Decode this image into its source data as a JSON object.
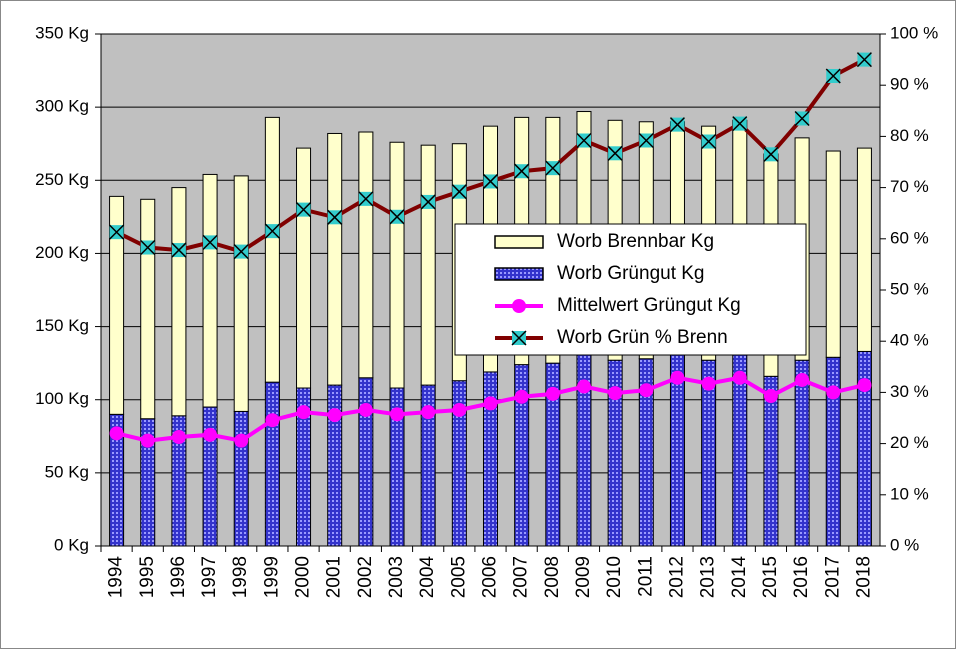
{
  "chart_data": {
    "type": "bar",
    "stacked": true,
    "categories": [
      "1994",
      "1995",
      "1996",
      "1997",
      "1998",
      "1999",
      "2000",
      "2001",
      "2002",
      "2003",
      "2004",
      "2005",
      "2006",
      "2007",
      "2008",
      "2009",
      "2010",
      "2011",
      "2012",
      "2013",
      "2014",
      "2015",
      "2016",
      "2017",
      "2018"
    ],
    "series": [
      {
        "name": "Worb Grüngut Kg",
        "type": "bar",
        "color": "#3333cc",
        "values": [
          90,
          87,
          89,
          95,
          92,
          112,
          108,
          110,
          115,
          108,
          110,
          113,
          119,
          124,
          125,
          131,
          127,
          128,
          131,
          127,
          131,
          116,
          127,
          129,
          133
        ]
      },
      {
        "name": "Worb Brennbar Kg",
        "type": "bar",
        "color": "#ffffcc",
        "values": [
          149,
          150,
          156,
          159,
          161,
          181,
          164,
          172,
          168,
          168,
          164,
          162,
          168,
          169,
          168,
          166,
          164,
          162,
          159,
          160,
          160,
          152,
          152,
          141,
          139
        ]
      },
      {
        "name": "Mittelwert Grüngut Kg",
        "type": "line",
        "color": "#ff00ff",
        "marker": "circle",
        "values": [
          77,
          72,
          74.5,
          76,
          72,
          86,
          91.5,
          89.5,
          93,
          90,
          91.5,
          93,
          97.5,
          102,
          104,
          109,
          104.5,
          106.5,
          115,
          111,
          115,
          102.5,
          113.5,
          105,
          110
        ]
      },
      {
        "name": "Worb Grün % Brenn",
        "type": "line",
        "color": "#800000",
        "marker": "x-square",
        "marker_color": "#33cccc",
        "axis": "y2",
        "values": [
          61.3,
          58.3,
          57.8,
          59.3,
          57.5,
          61.5,
          65.7,
          64.2,
          67.8,
          64.3,
          67.2,
          69.2,
          71.2,
          73.2,
          73.8,
          79.2,
          76.7,
          79.2,
          82.3,
          79,
          82.5,
          76.5,
          83.5,
          91.8,
          95
        ]
      }
    ],
    "legend_order": [
      1,
      0,
      2,
      3
    ],
    "ylim": [
      0,
      350
    ],
    "yticks": [
      {
        "value": 0,
        "label": "0 Kg"
      },
      {
        "value": 50,
        "label": "50 Kg"
      },
      {
        "value": 100,
        "label": "100 Kg"
      },
      {
        "value": 150,
        "label": "150 Kg"
      },
      {
        "value": 200,
        "label": "200 Kg"
      },
      {
        "value": 250,
        "label": "250 Kg"
      },
      {
        "value": 300,
        "label": "300 Kg"
      },
      {
        "value": 350,
        "label": "350 Kg"
      }
    ],
    "y2lim": [
      0,
      100
    ],
    "y2ticks": [
      {
        "value": 0,
        "label": "0 %"
      },
      {
        "value": 10,
        "label": "10 %"
      },
      {
        "value": 20,
        "label": "20 %"
      },
      {
        "value": 30,
        "label": "30 %"
      },
      {
        "value": 40,
        "label": "40 %"
      },
      {
        "value": 50,
        "label": "50 %"
      },
      {
        "value": 60,
        "label": "60 %"
      },
      {
        "value": 70,
        "label": "70 %"
      },
      {
        "value": 80,
        "label": "80 %"
      },
      {
        "value": 90,
        "label": "90 %"
      },
      {
        "value": 100,
        "label": "100 %"
      }
    ],
    "grid": true,
    "legend_position": "center-right",
    "plot_background": "#c0c0c0"
  }
}
